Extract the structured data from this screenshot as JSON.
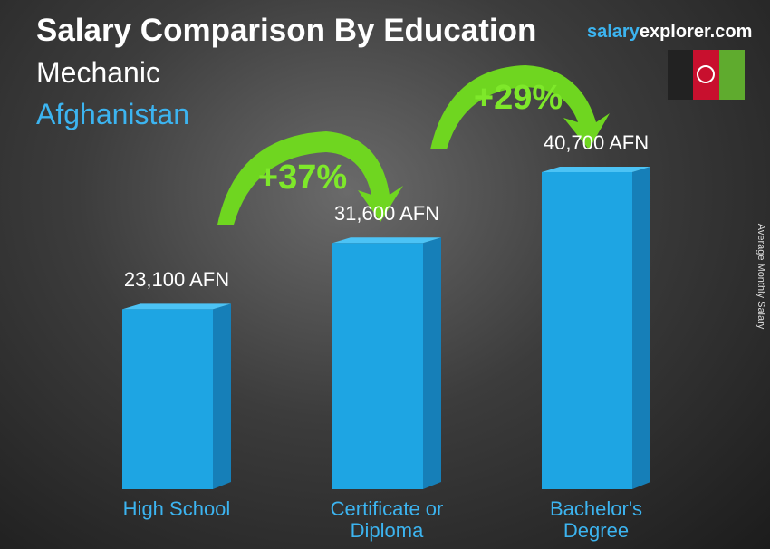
{
  "chart_data": {
    "type": "bar",
    "title": "Salary Comparison By Education",
    "subtitle": "Mechanic",
    "location": "Afghanistan",
    "brand": [
      "salary",
      "explorer.com"
    ],
    "y_label": "Average Monthly Salary",
    "categories": [
      "High School",
      "Certificate or Diploma",
      "Bachelor's Degree"
    ],
    "values": [
      23100,
      31600,
      40700
    ],
    "value_labels": [
      "23,100 AFN",
      "31,600 AFN",
      "40,700 AFN"
    ],
    "annotations": [
      "+37%",
      "+29%"
    ],
    "color": "#1ea5e3"
  }
}
